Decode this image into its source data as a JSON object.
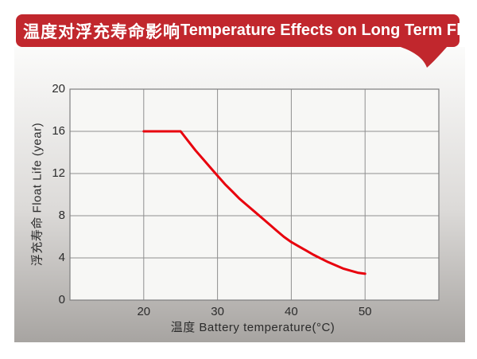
{
  "banner": {
    "title_zh": "温度对浮充寿命影响",
    "title_en": "Temperature Effects on Long Term Float Life"
  },
  "chart_data": {
    "type": "line",
    "title": "温度对浮充寿命影响 Temperature Effects on Long Term Float Life",
    "xlabel": "温度  Battery temperature(°C)",
    "ylabel": "浮充寿命 Float Life (year)",
    "xlim": [
      10,
      60
    ],
    "ylim": [
      0,
      20
    ],
    "x_ticks": [
      20,
      30,
      40,
      50
    ],
    "y_ticks": [
      0,
      4,
      8,
      12,
      16,
      20
    ],
    "grid": true,
    "legend": "none",
    "series": [
      {
        "name": "float-life-curve",
        "color": "#E8000D",
        "key_points_comment": "flat at 16 from 20-25°C, then smooth decay to 2.5 at 50°C",
        "points": [
          [
            20,
            16
          ],
          [
            25,
            16
          ],
          [
            26,
            15.1
          ],
          [
            27,
            14.2
          ],
          [
            28,
            13.4
          ],
          [
            29,
            12.6
          ],
          [
            30,
            11.8
          ],
          [
            31,
            11.0
          ],
          [
            32,
            10.3
          ],
          [
            33,
            9.6
          ],
          [
            34,
            9.0
          ],
          [
            35,
            8.4
          ],
          [
            36,
            7.8
          ],
          [
            37,
            7.2
          ],
          [
            38,
            6.6
          ],
          [
            39,
            6.0
          ],
          [
            40,
            5.5
          ],
          [
            41,
            5.1
          ],
          [
            42,
            4.7
          ],
          [
            43,
            4.3
          ],
          [
            44,
            3.95
          ],
          [
            45,
            3.6
          ],
          [
            46,
            3.3
          ],
          [
            47,
            3.0
          ],
          [
            48,
            2.8
          ],
          [
            49,
            2.6
          ],
          [
            50,
            2.5
          ]
        ]
      }
    ]
  },
  "colors": {
    "banner_bg": "#C1272D",
    "banner_text": "#FFFFFF",
    "curve": "#E8000D",
    "grid": "#8F8F8F",
    "frame": "#7F7F7F",
    "plot_bg": "#F7F7F5",
    "panel_top": "#FBFBFA",
    "panel_mid": "#DCDAD8",
    "panel_bottom": "#A7A4A1",
    "axis_text": "#2B2B2B"
  }
}
